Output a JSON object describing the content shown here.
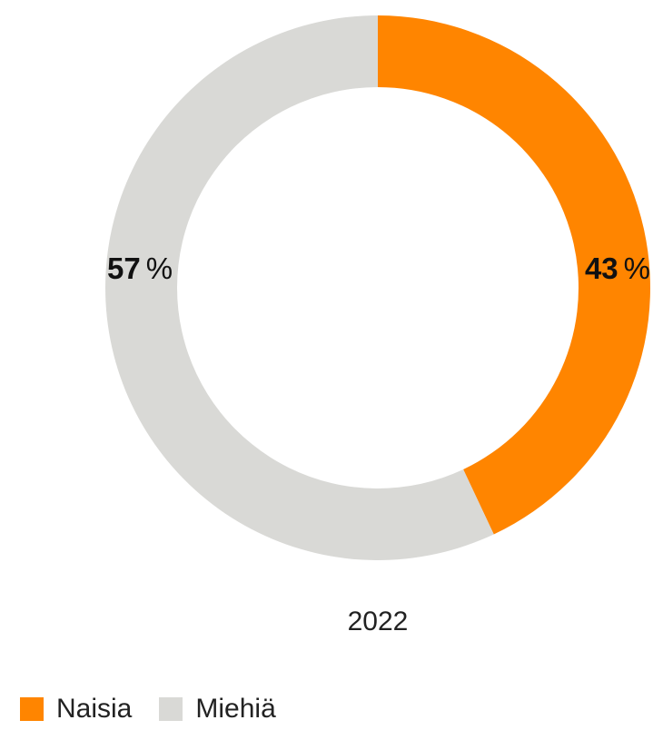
{
  "chart_data": {
    "type": "pie",
    "variant": "donut",
    "categories": [
      "Naisia",
      "Miehiä"
    ],
    "values": [
      43,
      57
    ],
    "unit": "%",
    "colors": [
      "#ff8500",
      "#d9d9d6"
    ],
    "data_labels": [
      "43",
      "57"
    ],
    "center_label": "2022",
    "legend": {
      "placement": "bottom-left",
      "entries": [
        "Naisia",
        "Miehiä"
      ]
    }
  }
}
